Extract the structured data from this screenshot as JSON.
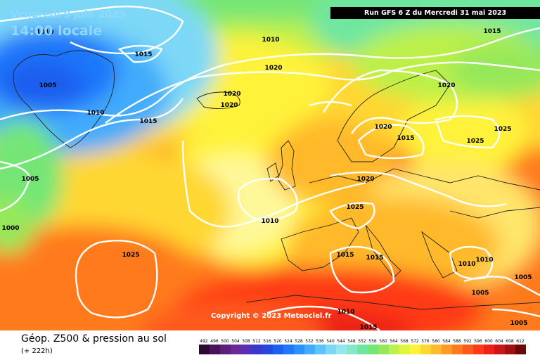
{
  "header": {
    "date": "Vendredi 9 juin 2023",
    "time": "14:00 locale",
    "run": "Run GFS 6 Z du Mercredi 31 mai 2023"
  },
  "copyright": "Copyright © 2023 Meteociel.fr",
  "legend": {
    "title": "Géop. Z500 & pression au sol",
    "subtitle": "(+ 222h)",
    "ticks": [
      "492",
      "496",
      "500",
      "504",
      "508",
      "512",
      "516",
      "520",
      "524",
      "528",
      "532",
      "536",
      "540",
      "544",
      "548",
      "552",
      "556",
      "560",
      "564",
      "568",
      "572",
      "576",
      "580",
      "584",
      "588",
      "592",
      "596",
      "600",
      "604",
      "608",
      "612"
    ],
    "colors": [
      "#2c0b32",
      "#4a1258",
      "#5e1f7a",
      "#6a2a9a",
      "#5a2fb8",
      "#3a38cc",
      "#2549dc",
      "#1e5ef0",
      "#1f77fa",
      "#2b92fc",
      "#42acfc",
      "#5dc4fb",
      "#7dd8f7",
      "#95e6ed",
      "#86e8c8",
      "#6ee6a0",
      "#74e676",
      "#96e85a",
      "#bcf04a",
      "#e0f53c",
      "#fff23a",
      "#ffd731",
      "#ffb92c",
      "#ff9a24",
      "#ff7a1e",
      "#ff5a1a",
      "#ff3a18",
      "#ee2218",
      "#cc1616",
      "#a01010",
      "#6a0808"
    ]
  },
  "map": {
    "isobars": [
      "1010",
      "1015",
      "1005",
      "1010",
      "1010",
      "1015",
      "1020",
      "1020",
      "1020",
      "1015",
      "1005",
      "1000",
      "1025",
      "1010",
      "1020",
      "1025",
      "1020",
      "1015",
      "1020",
      "1025",
      "1025",
      "1015",
      "1015",
      "1010",
      "1010",
      "1010",
      "1005",
      "1005",
      "1005",
      "1015"
    ]
  }
}
